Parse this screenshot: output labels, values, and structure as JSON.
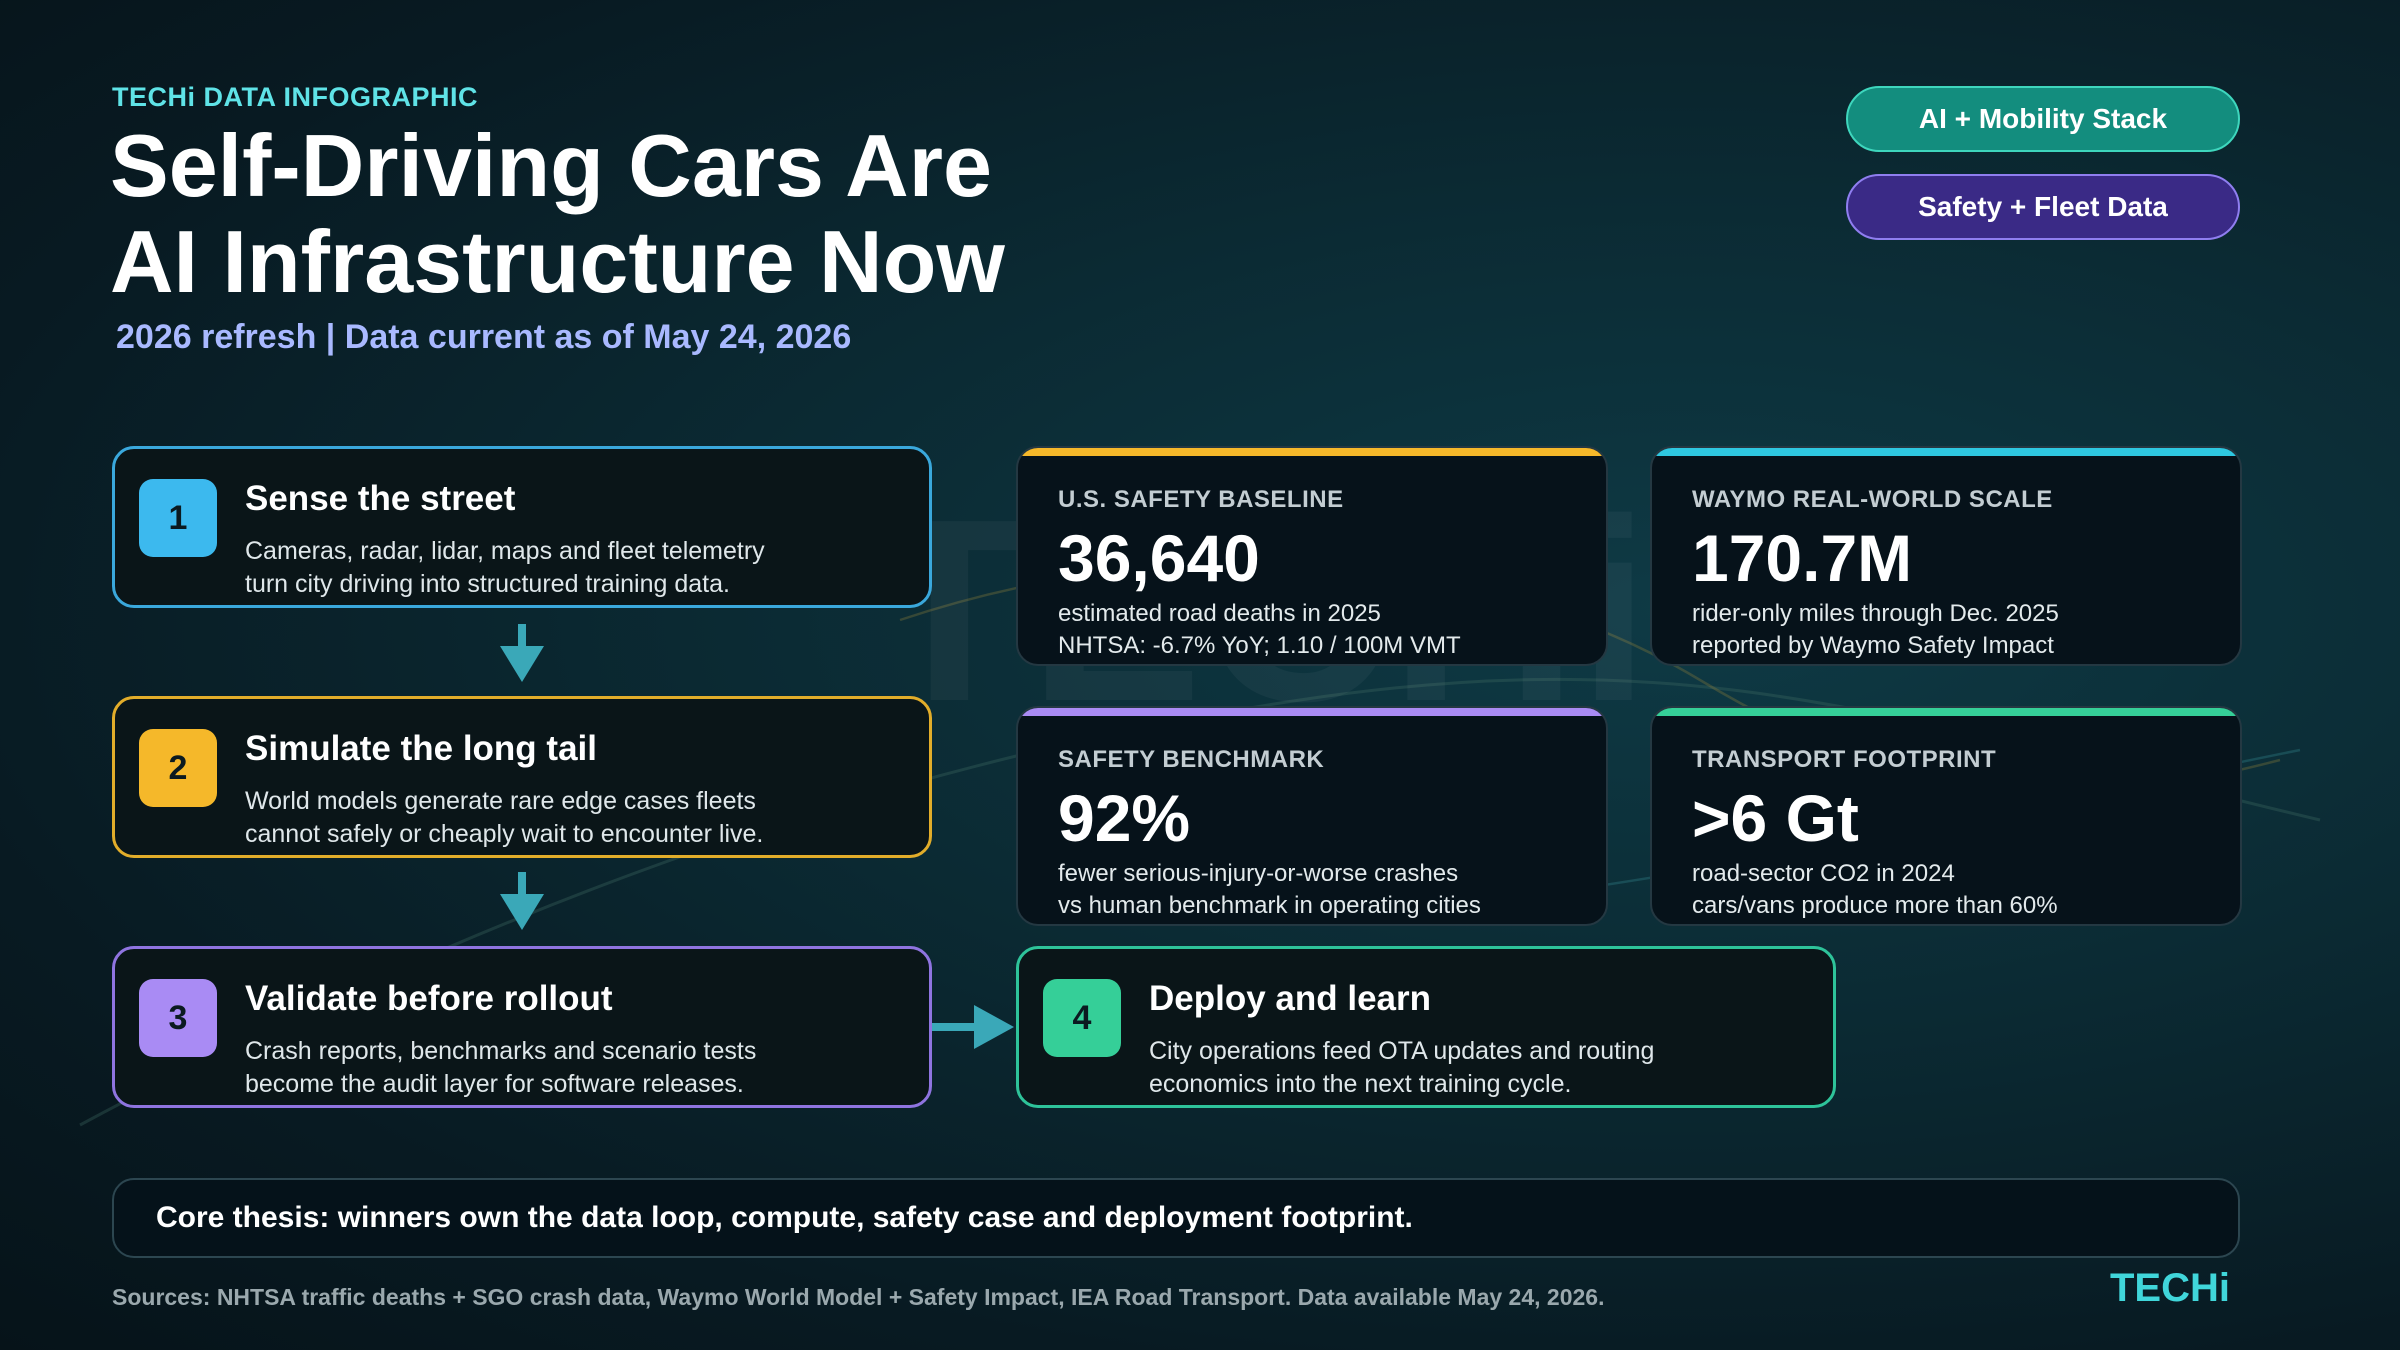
{
  "kicker": "TECHi DATA INFOGRAPHIC",
  "title_line1": "Self-Driving Cars Are",
  "title_line2": "AI Infrastructure Now",
  "subtitle": "2026 refresh | Data current as of May 24, 2026",
  "tags": [
    {
      "label": "AI + Mobility Stack",
      "color": "#138d7e"
    },
    {
      "label": "Safety + Fleet Data",
      "color": "#3a2a86"
    }
  ],
  "steps": [
    {
      "number": "1",
      "title": "Sense the street",
      "line1": "Cameras, radar, lidar, maps and fleet telemetry",
      "line2": "turn city driving into structured training data.",
      "color": "#3cb9ee"
    },
    {
      "number": "2",
      "title": "Simulate the long tail",
      "line1": "World models generate rare edge cases fleets",
      "line2": "cannot safely or cheaply wait to encounter live.",
      "color": "#f5b82a"
    },
    {
      "number": "3",
      "title": "Validate before rollout",
      "line1": "Crash reports, benchmarks and scenario tests",
      "line2": "become the audit layer for software releases.",
      "color": "#a98bf4"
    },
    {
      "number": "4",
      "title": "Deploy and learn",
      "line1": "City operations feed OTA updates and routing",
      "line2": "economics into the next training cycle.",
      "color": "#35cf98"
    }
  ],
  "stats": [
    {
      "label": "U.S. SAFETY BASELINE",
      "value": "36,640",
      "line1": "estimated road deaths in 2025",
      "line2": "NHTSA: -6.7% YoY; 1.10 / 100M VMT",
      "accent": "#f5b82a"
    },
    {
      "label": "WAYMO REAL-WORLD SCALE",
      "value": "170.7M",
      "line1": "rider-only miles through Dec. 2025",
      "line2": "reported by Waymo Safety Impact",
      "accent": "#2ec7e0"
    },
    {
      "label": "SAFETY BENCHMARK",
      "value": "92%",
      "line1": "fewer serious-injury-or-worse crashes",
      "line2": "vs human benchmark in operating cities",
      "accent": "#a98bf4"
    },
    {
      "label": "TRANSPORT FOOTPRINT",
      "value": ">6 Gt",
      "line1": "road-sector CO2 in 2024",
      "line2": "cars/vans produce more than 60%",
      "accent": "#35cf98"
    }
  ],
  "thesis": "Core thesis: winners own the data loop, compute, safety case and deployment footprint.",
  "sources": "Sources: NHTSA traffic deaths + SGO crash data, Waymo World Model + Safety Impact, IEA Road Transport. Data available May 24, 2026.",
  "brand": "TECHi",
  "icons": {
    "flow_down": "arrow-down-icon",
    "flow_right": "arrow-right-icon"
  }
}
